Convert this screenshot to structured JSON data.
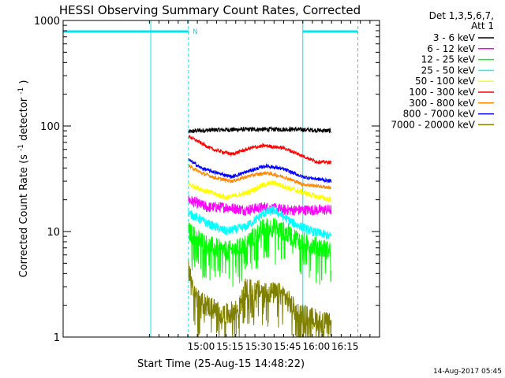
{
  "chart_data": {
    "type": "line",
    "title": "HESSI Observing Summary Count Rates, Corrected",
    "xlabel": "Start Time (25-Aug-15 14:48:22)",
    "ylabel_main": "Corrected Count Rate (s",
    "ylabel_sup1": "-1",
    "ylabel_mid": " detector",
    "ylabel_sup2": "-1",
    "ylabel_end": ")",
    "yscale": "log",
    "ylim": [
      1,
      1000
    ],
    "xlim_minutes": [
      -60,
      105
    ],
    "x_tick_labels": [
      "15:00",
      "15:15",
      "15:30",
      "15:45",
      "16:00",
      "16:15"
    ],
    "x_tick_minutes": [
      12,
      27,
      42,
      57,
      72,
      87
    ],
    "y_tick_labels": [
      "1",
      "10",
      "100",
      "1000"
    ],
    "y_tick_values": [
      1,
      10,
      100,
      1000
    ],
    "legend_header_1": "Det 1,3,5,6,7,",
    "legend_header_2": "Att 1",
    "timestamp": "14-Aug-2017 05:45",
    "night_marker_label": "N",
    "x_data_range_minutes": [
      5.4,
      79.8
    ],
    "attenuator_lines_minutes": [
      -14.3,
      65
    ],
    "night_intervals_minutes": [
      [
        -60,
        5.4
      ],
      [
        65,
        93.7
      ]
    ],
    "night_dashed_minutes": [
      5.4,
      93.7
    ],
    "series": [
      {
        "name": "3 - 6 keV",
        "color": "#000000",
        "profile": [
          [
            5.4,
            88
          ],
          [
            9,
            90
          ],
          [
            20,
            92
          ],
          [
            40,
            93
          ],
          [
            60,
            93
          ],
          [
            79.8,
            90
          ]
        ],
        "noise": 0.05
      },
      {
        "name": "6 - 12 keV",
        "color": "#ff00ff",
        "profile": [
          [
            5.4,
            20
          ],
          [
            15,
            17
          ],
          [
            25,
            17
          ],
          [
            35,
            16
          ],
          [
            45,
            17
          ],
          [
            55,
            16
          ],
          [
            65,
            16
          ],
          [
            79.8,
            16
          ]
        ],
        "noise": 0.12
      },
      {
        "name": "12 - 25 keV",
        "color": "#00ff00",
        "profile": [
          [
            5.4,
            10
          ],
          [
            15,
            7.5
          ],
          [
            25,
            6.5
          ],
          [
            32,
            7
          ],
          [
            38,
            8.5
          ],
          [
            45,
            11
          ],
          [
            50,
            11
          ],
          [
            55,
            10
          ],
          [
            65,
            8
          ],
          [
            79.8,
            6.5
          ]
        ],
        "noise": 0.22
      },
      {
        "name": "25 - 50 keV",
        "color": "#00ffff",
        "profile": [
          [
            5.4,
            15
          ],
          [
            15,
            12
          ],
          [
            25,
            10
          ],
          [
            35,
            11
          ],
          [
            45,
            15
          ],
          [
            50,
            16
          ],
          [
            60,
            12
          ],
          [
            70,
            10
          ],
          [
            79.8,
            9
          ]
        ],
        "noise": 0.1
      },
      {
        "name": "50 - 100 keV",
        "color": "#ffff00",
        "profile": [
          [
            5.4,
            28
          ],
          [
            15,
            24
          ],
          [
            25,
            21
          ],
          [
            35,
            23
          ],
          [
            45,
            28
          ],
          [
            50,
            29
          ],
          [
            60,
            25
          ],
          [
            70,
            22
          ],
          [
            79.8,
            20
          ]
        ],
        "noise": 0.06
      },
      {
        "name": "100 - 300 keV",
        "color": "#ff0000",
        "profile": [
          [
            5.4,
            80
          ],
          [
            10,
            72
          ],
          [
            18,
            60
          ],
          [
            28,
            54
          ],
          [
            38,
            62
          ],
          [
            45,
            65
          ],
          [
            55,
            62
          ],
          [
            65,
            52
          ],
          [
            72,
            46
          ],
          [
            79.8,
            45
          ]
        ],
        "noise": 0.04
      },
      {
        "name": "300 - 800 keV",
        "color": "#ff8800",
        "profile": [
          [
            5.4,
            42
          ],
          [
            12,
            36
          ],
          [
            20,
            32
          ],
          [
            28,
            30
          ],
          [
            38,
            34
          ],
          [
            46,
            36
          ],
          [
            55,
            33
          ],
          [
            65,
            28
          ],
          [
            79.8,
            26
          ]
        ],
        "noise": 0.04
      },
      {
        "name": "800 - 7000 keV",
        "color": "#0000ff",
        "profile": [
          [
            5.4,
            48
          ],
          [
            12,
            40
          ],
          [
            20,
            36
          ],
          [
            28,
            33
          ],
          [
            38,
            38
          ],
          [
            46,
            42
          ],
          [
            55,
            39
          ],
          [
            65,
            33
          ],
          [
            79.8,
            30
          ]
        ],
        "noise": 0.04
      },
      {
        "name": "7000 - 20000 keV",
        "color": "#808000",
        "profile": [
          [
            5.4,
            4.5
          ],
          [
            7,
            3.5
          ],
          [
            10,
            2.2
          ],
          [
            15,
            2.0
          ],
          [
            25,
            1.6
          ],
          [
            32,
            1.9
          ],
          [
            35,
            2.8
          ],
          [
            45,
            2.7
          ],
          [
            55,
            2.5
          ],
          [
            62,
            1.7
          ],
          [
            70,
            1.5
          ],
          [
            79.8,
            1.3
          ]
        ],
        "noise": 0.25
      }
    ]
  }
}
